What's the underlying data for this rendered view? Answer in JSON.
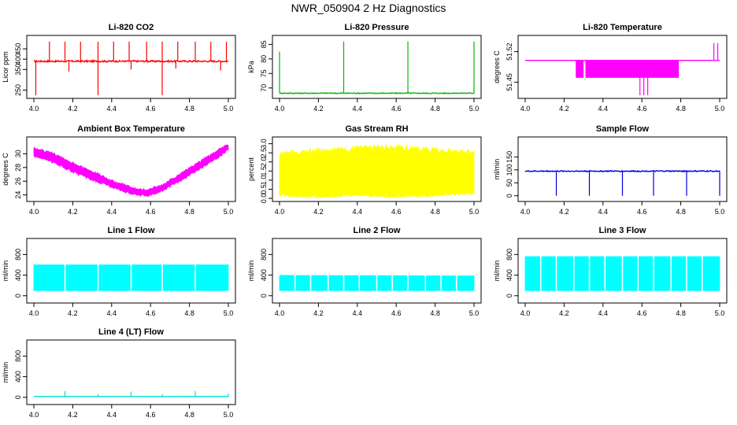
{
  "page": {
    "title": "NWR_050904  2 Hz Diagnostics"
  },
  "chart_data": [
    {
      "id": "co2",
      "type": "line",
      "title": "Li-820 CO2",
      "xlabel": "",
      "ylabel": "Licor ppm",
      "color": "#ff0000",
      "xlim": [
        4.0,
        5.0
      ],
      "ylim": [
        225,
        500
      ],
      "x_ticks": [
        "4.0",
        "4.2",
        "4.4",
        "4.6",
        "4.8",
        "5.0"
      ],
      "y_ticks": [
        250,
        350,
        400,
        450
      ],
      "base": 390,
      "noise": 4,
      "band_ranges": [],
      "spikes": [
        [
          4.08,
          485
        ],
        [
          4.16,
          485
        ],
        [
          4.24,
          485
        ],
        [
          4.33,
          485
        ],
        [
          4.41,
          485
        ],
        [
          4.49,
          485
        ],
        [
          4.58,
          485
        ],
        [
          4.66,
          485
        ],
        [
          4.74,
          485
        ],
        [
          4.83,
          485
        ],
        [
          4.91,
          485
        ],
        [
          4.99,
          485
        ],
        [
          4.01,
          225
        ],
        [
          4.33,
          225
        ],
        [
          4.66,
          225
        ],
        [
          4.18,
          340
        ],
        [
          4.5,
          350
        ],
        [
          4.73,
          355
        ],
        [
          4.96,
          345
        ]
      ]
    },
    {
      "id": "pressure",
      "type": "line",
      "title": "Li-820 Pressure",
      "xlabel": "",
      "ylabel": "kPa",
      "color": "#00bb00",
      "xlim": [
        4.0,
        5.0
      ],
      "ylim": [
        67.5,
        87
      ],
      "x_ticks": [
        "4.0",
        "4.2",
        "4.4",
        "4.6",
        "4.8",
        "5.0"
      ],
      "y_ticks": [
        70,
        75,
        80,
        85
      ],
      "base": 68.2,
      "noise": 0.15,
      "band_ranges": [],
      "spikes": [
        [
          4.0,
          82.5
        ],
        [
          4.33,
          86
        ],
        [
          4.66,
          86
        ],
        [
          5.0,
          86
        ]
      ]
    },
    {
      "id": "temp820",
      "type": "line",
      "title": "Li-820 Temperature",
      "xlabel": "",
      "ylabel": "degrees C",
      "color": "#ff00ff",
      "xlim": [
        4.0,
        5.0
      ],
      "ylim": [
        51.42,
        51.55
      ],
      "x_ticks": [
        "4.0",
        "4.2",
        "4.4",
        "4.6",
        "4.8",
        "5.0"
      ],
      "y_ticks": [
        51.45,
        51.52
      ],
      "y_tick_labels": [
        "51.45",
        "51.52"
      ],
      "base": 51.5,
      "noise": 0.0,
      "band_ranges": [
        [
          4.26,
          4.3,
          51.46,
          51.5
        ],
        [
          4.31,
          4.79,
          51.46,
          51.5
        ]
      ],
      "spikes": [
        [
          4.59,
          51.42
        ],
        [
          4.61,
          51.42
        ],
        [
          4.63,
          51.42
        ],
        [
          4.97,
          51.54
        ],
        [
          4.99,
          51.54
        ]
      ]
    },
    {
      "id": "boxtemp",
      "type": "area",
      "title": "Ambient Box Temperature",
      "xlabel": "",
      "ylabel": "degrees C",
      "color": "#ff00ff",
      "xlim": [
        4.0,
        5.0
      ],
      "ylim": [
        23.5,
        32
      ],
      "x_ticks": [
        "4.0",
        "4.2",
        "4.4",
        "4.6",
        "4.8",
        "5.0"
      ],
      "y_ticks": [
        24,
        26,
        28,
        30
      ],
      "upper": [
        [
          4.0,
          31.0
        ],
        [
          4.1,
          30.2
        ],
        [
          4.2,
          28.8
        ],
        [
          4.3,
          27.6
        ],
        [
          4.4,
          26.3
        ],
        [
          4.5,
          25.3
        ],
        [
          4.58,
          24.9
        ],
        [
          4.65,
          25.5
        ],
        [
          4.75,
          27.2
        ],
        [
          4.85,
          29.0
        ],
        [
          4.95,
          30.8
        ],
        [
          5.0,
          31.5
        ]
      ],
      "lower": [
        [
          4.0,
          29.5
        ],
        [
          4.1,
          28.6
        ],
        [
          4.2,
          27.2
        ],
        [
          4.3,
          26.0
        ],
        [
          4.4,
          25.0
        ],
        [
          4.5,
          24.0
        ],
        [
          4.58,
          23.7
        ],
        [
          4.65,
          24.3
        ],
        [
          4.75,
          25.8
        ],
        [
          4.85,
          27.6
        ],
        [
          4.95,
          29.3
        ],
        [
          5.0,
          30.5
        ]
      ]
    },
    {
      "id": "rh",
      "type": "area",
      "title": "Gas Stream RH",
      "xlabel": "",
      "ylabel": "percent",
      "color": "#ffff00",
      "xlim": [
        4.0,
        5.0
      ],
      "ylim": [
        0,
        3.2
      ],
      "x_ticks": [
        "4.0",
        "4.2",
        "4.4",
        "4.6",
        "4.8",
        "5.0"
      ],
      "y_ticks": [
        0.0,
        0.5,
        1.0,
        1.5,
        2.0,
        2.5,
        3.0
      ],
      "y_tick_labels": [
        "0.0",
        "0.5",
        "1.0",
        "1.5",
        "2.0",
        "2.5",
        "3.0"
      ],
      "upper": [
        [
          4.0,
          2.6
        ],
        [
          4.2,
          2.8
        ],
        [
          4.4,
          2.9
        ],
        [
          4.6,
          3.0
        ],
        [
          4.8,
          2.8
        ],
        [
          5.0,
          2.7
        ]
      ],
      "lower": [
        [
          4.0,
          0.1
        ],
        [
          4.2,
          0.0
        ],
        [
          4.4,
          0.1
        ],
        [
          4.6,
          0.0
        ],
        [
          4.8,
          0.1
        ],
        [
          5.0,
          0.2
        ]
      ]
    },
    {
      "id": "sampleflow",
      "type": "line",
      "title": "Sample Flow",
      "xlabel": "",
      "ylabel": "ml/min",
      "color": "#0000dd",
      "xlim": [
        4.0,
        5.0
      ],
      "ylim": [
        -10,
        215
      ],
      "x_ticks": [
        "4.0",
        "4.2",
        "4.4",
        "4.6",
        "4.8",
        "5.0"
      ],
      "y_ticks": [
        0,
        50,
        100,
        150
      ],
      "base": 95,
      "noise": 2,
      "band_ranges": [],
      "spikes": [
        [
          4.16,
          0
        ],
        [
          4.33,
          0
        ],
        [
          4.5,
          0
        ],
        [
          4.66,
          0
        ],
        [
          4.83,
          0
        ],
        [
          5.0,
          0
        ]
      ]
    },
    {
      "id": "line1",
      "type": "area",
      "title": "Line 1 Flow",
      "xlabel": "",
      "ylabel": "ml/min",
      "color": "#00ffff",
      "xlim": [
        4.0,
        5.0
      ],
      "ylim": [
        -80,
        1050
      ],
      "x_ticks": [
        "4.0",
        "4.2",
        "4.4",
        "4.6",
        "4.8",
        "5.0"
      ],
      "y_ticks": [
        0,
        400,
        800
      ],
      "upper": [
        [
          4.0,
          600
        ],
        [
          5.0,
          600
        ]
      ],
      "lower": [
        [
          4.0,
          100
        ],
        [
          5.0,
          100
        ]
      ],
      "gaps": [
        4.16,
        4.33,
        4.5,
        4.66,
        4.83
      ]
    },
    {
      "id": "line2",
      "type": "area",
      "title": "Line 2 Flow",
      "xlabel": "",
      "ylabel": "ml/min",
      "color": "#00ffff",
      "xlim": [
        4.0,
        5.0
      ],
      "ylim": [
        -80,
        1050
      ],
      "x_ticks": [
        "4.0",
        "4.2",
        "4.4",
        "4.6",
        "4.8",
        "5.0"
      ],
      "y_ticks": [
        0,
        400,
        800
      ],
      "upper": [
        [
          4.0,
          395
        ],
        [
          5.0,
          385
        ]
      ],
      "lower": [
        [
          4.0,
          100
        ],
        [
          5.0,
          100
        ]
      ],
      "gaps": [
        4.08,
        4.16,
        4.25,
        4.33,
        4.41,
        4.5,
        4.58,
        4.66,
        4.75,
        4.83,
        4.91
      ]
    },
    {
      "id": "line3",
      "type": "area",
      "title": "Line 3 Flow",
      "xlabel": "",
      "ylabel": "ml/min",
      "color": "#00ffff",
      "xlim": [
        4.0,
        5.0
      ],
      "ylim": [
        -80,
        1050
      ],
      "x_ticks": [
        "4.0",
        "4.2",
        "4.4",
        "4.6",
        "4.8",
        "5.0"
      ],
      "y_ticks": [
        0,
        400,
        800
      ],
      "upper": [
        [
          4.0,
          760
        ],
        [
          5.0,
          760
        ]
      ],
      "lower": [
        [
          4.0,
          100
        ],
        [
          5.0,
          100
        ]
      ],
      "gaps": [
        4.08,
        4.16,
        4.25,
        4.33,
        4.41,
        4.5,
        4.58,
        4.66,
        4.75,
        4.83,
        4.91
      ]
    },
    {
      "id": "line4",
      "type": "line",
      "title": "Line 4 (LT) Flow",
      "xlabel": "",
      "ylabel": "ml/min",
      "color": "#00dddd",
      "xlim": [
        4.0,
        5.0
      ],
      "ylim": [
        -80,
        1050
      ],
      "x_ticks": [
        "4.0",
        "4.2",
        "4.4",
        "4.6",
        "4.8",
        "5.0"
      ],
      "y_ticks": [
        0,
        400,
        800
      ],
      "base": 15,
      "noise": 1,
      "band_ranges": [],
      "spikes": [
        [
          4.16,
          120
        ],
        [
          4.33,
          60
        ],
        [
          4.5,
          110
        ],
        [
          4.66,
          60
        ],
        [
          4.83,
          120
        ],
        [
          5.0,
          70
        ]
      ]
    }
  ]
}
